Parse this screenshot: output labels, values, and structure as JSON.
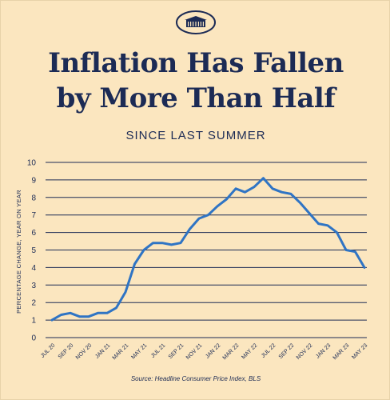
{
  "header": {
    "title_line1": "Inflation Has Fallen",
    "title_line2": "by More Than Half",
    "subtitle": "SINCE LAST SUMMER",
    "source": "Source: Headline Consumer Price Index, BLS",
    "logo_icon": "white-house-icon"
  },
  "colors": {
    "background": "#fbe6bf",
    "navy": "#1c2b55",
    "line": "#2f74c4",
    "grid": "#1c2b55"
  },
  "chart_data": {
    "type": "line",
    "title": "Inflation Has Fallen by More Than Half",
    "subtitle": "SINCE LAST SUMMER",
    "xlabel": "",
    "ylabel": "PERCENTAGE CHANGE, YEAR ON YEAR",
    "ylim": [
      0,
      10
    ],
    "yticks": [
      0,
      1,
      2,
      3,
      4,
      5,
      6,
      7,
      8,
      9,
      10
    ],
    "grid": true,
    "xtick_labels": [
      "JUL 20",
      "SEP 20",
      "NOV 20",
      "JAN 21",
      "MAR 21",
      "MAY 21",
      "JUL 21",
      "SEP 21",
      "NOV 21",
      "JAN 22",
      "MAR 22",
      "MAY 22",
      "JUL 22",
      "SEP 22",
      "NOV 22",
      "JAN 23",
      "MAR 23",
      "MAY 23"
    ],
    "series": [
      {
        "values": [
          1.0,
          1.3,
          1.4,
          1.2,
          1.2,
          1.4,
          1.4,
          1.7,
          2.6,
          4.2,
          5.0,
          5.4,
          5.4,
          5.3,
          5.4,
          6.2,
          6.8,
          7.0,
          7.5,
          7.9,
          8.5,
          8.3,
          8.6,
          9.1,
          8.5,
          8.3,
          8.2,
          7.7,
          7.1,
          6.5,
          6.4,
          6.0,
          5.0,
          4.9,
          4.0
        ]
      }
    ],
    "source": "Source: Headline Consumer Price Index, BLS"
  }
}
